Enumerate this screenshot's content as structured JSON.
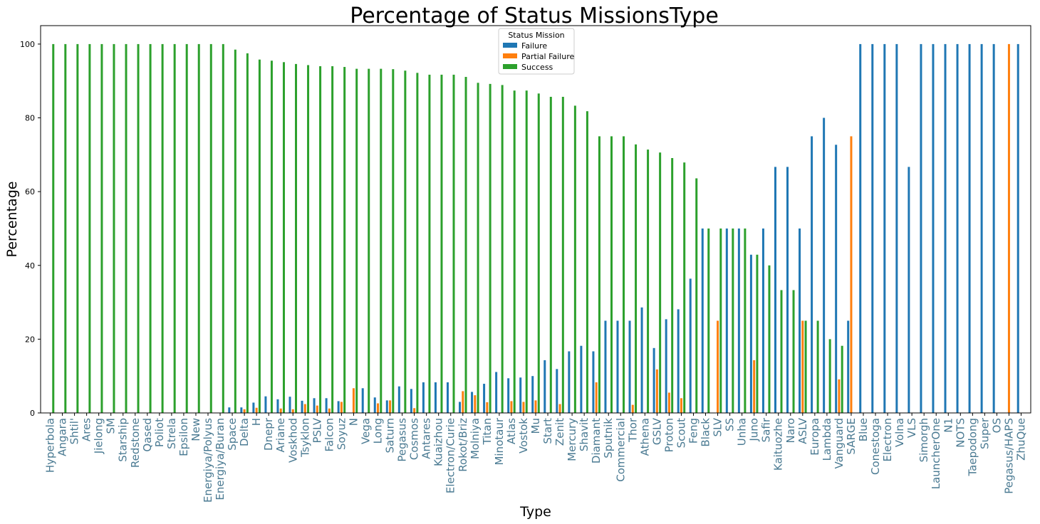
{
  "chart_data": {
    "type": "bar",
    "title": "Percentage of Status MissionsType",
    "xlabel": "Type",
    "ylabel": "Percentage",
    "ylim": [
      0,
      105
    ],
    "yticks": [
      0,
      20,
      40,
      60,
      80,
      100
    ],
    "grid": false,
    "legend": {
      "title": "Status Mission",
      "placement": "top-center"
    },
    "categories": [
      "Hyperbola",
      "Angara",
      "Shtil'",
      "Ares",
      "Jielong",
      "SM",
      "Starship",
      "Redstone",
      "Qased",
      "Poliot",
      "Strela",
      "Epsilon",
      "New",
      "Energiya/Polyus",
      "Energiya/Buran",
      "Space",
      "Delta",
      "H",
      "Dnepr",
      "Ariane",
      "Voskhod",
      "Tsyklon",
      "PSLV",
      "Falcon",
      "Soyuz",
      "N",
      "Vega",
      "Long",
      "Saturn",
      "Pegasus",
      "Cosmos",
      "Antares",
      "Kuaizhou",
      "Electron/Curie",
      "Rokot/Briz",
      "Molniya",
      "Titan",
      "Minotaur",
      "Atlas",
      "Vostok",
      "Mu",
      "Start",
      "Zenit",
      "Mercury",
      "Shavit",
      "Diamant",
      "Sputnik",
      "Commercial",
      "Thor",
      "Athena",
      "GSLV",
      "Proton",
      "Scout",
      "Feng",
      "Black",
      "SLV",
      "SS",
      "Unha",
      "Juno",
      "Safir",
      "Kaituozhe",
      "Naro",
      "ASLV",
      "Europa",
      "Lambda",
      "Vanguard",
      "SARGE",
      "Blue",
      "Conestoga",
      "Electron",
      "Volna",
      "VLS",
      "Simorgh",
      "LauncherOne",
      "N1",
      "NOTS",
      "Taepodong",
      "Super",
      "OS",
      "Pegasus/HAPS",
      "ZhuQue"
    ],
    "series": [
      {
        "name": "Failure",
        "color": "#1f77b4",
        "values": [
          0,
          0,
          0,
          0,
          0,
          0,
          0,
          0,
          0,
          0,
          0,
          0,
          0,
          0,
          0,
          1.5,
          1.5,
          2.8,
          4.5,
          3.7,
          4.4,
          3.3,
          4,
          4,
          3.2,
          0,
          6.7,
          4.2,
          3.4,
          7.2,
          6.5,
          8.3,
          8.3,
          8.3,
          3.0,
          5.7,
          7.9,
          11.1,
          9.4,
          9.6,
          10.0,
          14.3,
          11.9,
          16.7,
          18.2,
          16.7,
          25,
          25,
          25,
          28.6,
          17.6,
          25.4,
          28.1,
          36.4,
          50,
          0,
          50,
          50,
          42.9,
          50,
          66.7,
          66.7,
          50,
          75,
          80,
          72.7,
          25,
          100,
          100,
          100,
          100,
          66.7,
          100,
          100,
          100,
          100,
          100,
          100,
          100,
          0,
          100
        ]
      },
      {
        "name": "Partial Failure",
        "color": "#ff7f0e",
        "values": [
          0,
          0,
          0,
          0,
          0,
          0,
          0,
          0,
          0,
          0,
          0,
          0,
          0,
          0,
          0,
          0,
          1.0,
          1.4,
          0,
          1.2,
          1.0,
          2.4,
          2.0,
          1.2,
          3.0,
          6.7,
          0,
          2.6,
          3.4,
          0,
          1.3,
          0,
          0,
          0,
          5.9,
          4.8,
          2.9,
          0,
          3.2,
          3.0,
          3.4,
          0,
          2.4,
          0,
          0,
          8.3,
          0,
          0,
          2.2,
          0,
          11.8,
          5.5,
          4.0,
          0,
          0,
          25,
          0,
          0,
          14.3,
          0,
          0,
          0,
          25,
          0,
          0,
          9.1,
          75,
          0,
          0,
          0,
          0,
          0,
          0,
          0,
          0,
          0,
          0,
          0,
          0,
          100,
          0
        ]
      },
      {
        "name": "Success",
        "color": "#2ca02c",
        "values": [
          100,
          100,
          100,
          100,
          100,
          100,
          100,
          100,
          100,
          100,
          100,
          100,
          100,
          100,
          100,
          98.5,
          97.5,
          95.8,
          95.5,
          95.1,
          94.6,
          94.3,
          94.0,
          94.0,
          93.8,
          93.3,
          93.3,
          93.3,
          93.2,
          92.8,
          92.2,
          91.7,
          91.7,
          91.7,
          91.1,
          89.5,
          89.2,
          88.9,
          87.4,
          87.4,
          86.6,
          85.7,
          85.7,
          83.3,
          81.8,
          75,
          75,
          75,
          72.8,
          71.4,
          70.6,
          69.1,
          67.9,
          63.6,
          50,
          50,
          50,
          50,
          42.9,
          40,
          33.3,
          33.3,
          25,
          25,
          20,
          18.2,
          0,
          0,
          0,
          0,
          0,
          0,
          0,
          0,
          0,
          0,
          0,
          0,
          0,
          0,
          0
        ]
      }
    ]
  }
}
